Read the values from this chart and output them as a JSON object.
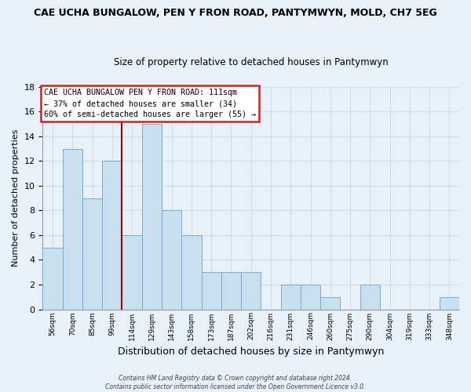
{
  "title_line1": "CAE UCHA BUNGALOW, PEN Y FRON ROAD, PANTYMWYN, MOLD, CH7 5EG",
  "title_line2": "Size of property relative to detached houses in Pantymwyn",
  "xlabel": "Distribution of detached houses by size in Pantymwyn",
  "ylabel": "Number of detached properties",
  "bar_labels": [
    "56sqm",
    "70sqm",
    "85sqm",
    "99sqm",
    "114sqm",
    "129sqm",
    "143sqm",
    "158sqm",
    "173sqm",
    "187sqm",
    "202sqm",
    "216sqm",
    "231sqm",
    "246sqm",
    "260sqm",
    "275sqm",
    "290sqm",
    "304sqm",
    "319sqm",
    "333sqm",
    "348sqm"
  ],
  "bar_heights": [
    5,
    13,
    9,
    12,
    6,
    15,
    8,
    6,
    3,
    3,
    3,
    0,
    2,
    2,
    1,
    0,
    2,
    0,
    0,
    0,
    1
  ],
  "bar_color": "#c8dff0",
  "bar_edge_color": "#7aadd4",
  "annotation_title": "CAE UCHA BUNGALOW PEN Y FRON ROAD: 111sqm",
  "annotation_line2": "← 37% of detached houses are smaller (34)",
  "annotation_line3": "60% of semi-detached houses are larger (55) →",
  "ylim": [
    0,
    18
  ],
  "yticks": [
    0,
    2,
    4,
    6,
    8,
    10,
    12,
    14,
    16,
    18
  ],
  "footer_line1": "Contains HM Land Registry data © Crown copyright and database right 2024.",
  "footer_line2": "Contains public sector information licensed under the Open Government Licence v3.0.",
  "background_color": "#e8f0f8",
  "grid_color": "#d0dce8",
  "vline_color": "#990000",
  "vline_index": 4,
  "title1_fontsize": 9,
  "title2_fontsize": 8.5,
  "bar_label_fontsize": 6.5,
  "ylabel_fontsize": 8,
  "xlabel_fontsize": 9
}
